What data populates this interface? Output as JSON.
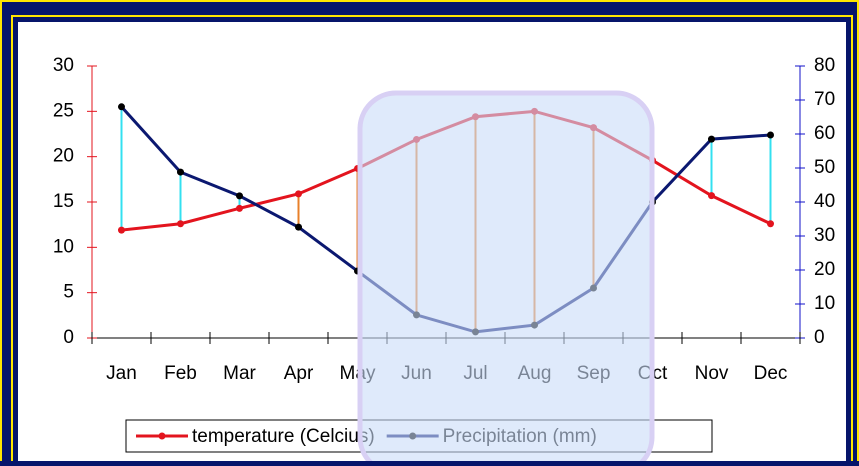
{
  "chart_data": {
    "type": "line",
    "categories": [
      "Jan",
      "Feb",
      "Mar",
      "Apr",
      "May",
      "Jun",
      "Jul",
      "Aug",
      "Sep",
      "Oct",
      "Nov",
      "Dec"
    ],
    "series": [
      {
        "name": "temperature (Celcius)",
        "color": "#e3141e",
        "values": [
          11.9,
          12.6,
          14.3,
          15.9,
          18.7,
          21.9,
          24.4,
          25.0,
          23.2,
          19.6,
          15.7,
          12.6
        ]
      },
      {
        "name": "Precipitation (mm)",
        "color": "#0b1870",
        "axis": "y2",
        "values": [
          68,
          48.8,
          41.8,
          32.6,
          19.7,
          6.8,
          1.8,
          3.8,
          14.7,
          40,
          58.5,
          59.7
        ]
      }
    ],
    "ylim": [
      0,
      30
    ],
    "yticks": [
      0,
      5,
      10,
      15,
      20,
      25,
      30
    ],
    "y2lim": [
      0,
      80
    ],
    "y2ticks": [
      0,
      10,
      20,
      30,
      40,
      50,
      60,
      70,
      80
    ],
    "legend": "bottom"
  }
}
